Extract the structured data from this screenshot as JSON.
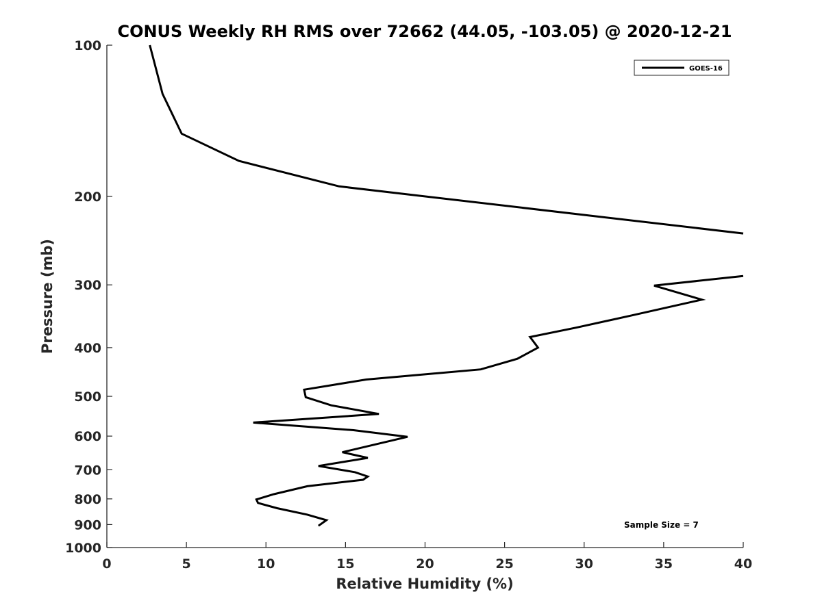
{
  "chart_data": {
    "type": "line",
    "title": "CONUS Weekly RH RMS over 72662 (44.05, -103.05) @ 2020-12-21",
    "xlabel": "Relative Humidity (%)",
    "ylabel": "Pressure (mb)",
    "xlim": [
      0,
      40
    ],
    "ylim": [
      100,
      1000
    ],
    "y_scale": "log",
    "y_reversed": true,
    "grid": false,
    "legend_position": "top-right",
    "x_ticks": [
      0,
      5,
      10,
      15,
      20,
      25,
      30,
      35,
      40
    ],
    "y_ticks": [
      100,
      200,
      300,
      400,
      500,
      600,
      700,
      800,
      900,
      1000
    ],
    "annotation": "Sample Size = 7",
    "series": [
      {
        "name": "GOES-16",
        "color": "#000000",
        "points": [
          [
            2.7,
            100
          ],
          [
            3.5,
            125
          ],
          [
            4.7,
            150
          ],
          [
            8.3,
            170
          ],
          [
            14.6,
            191
          ],
          [
            40.0,
            237
          ],
          [
            null,
            null
          ],
          [
            40.0,
            288
          ],
          [
            34.4,
            301
          ],
          [
            37.4,
            321
          ],
          [
            33.0,
            345
          ],
          [
            29.5,
            365
          ],
          [
            26.6,
            381
          ],
          [
            27.1,
            400
          ],
          [
            25.8,
            421
          ],
          [
            23.5,
            442
          ],
          [
            16.3,
            463
          ],
          [
            12.4,
            485
          ],
          [
            12.5,
            502
          ],
          [
            14.1,
            521
          ],
          [
            17.1,
            542
          ],
          [
            9.2,
            564
          ],
          [
            15.5,
            584
          ],
          [
            18.9,
            602
          ],
          [
            14.8,
            646
          ],
          [
            16.4,
            663
          ],
          [
            13.3,
            688
          ],
          [
            15.6,
            708
          ],
          [
            16.4,
            722
          ],
          [
            16.1,
            733
          ],
          [
            12.6,
            755
          ],
          [
            10.5,
            783
          ],
          [
            9.4,
            802
          ],
          [
            9.5,
            815
          ],
          [
            10.7,
            835
          ],
          [
            12.6,
            860
          ],
          [
            13.8,
            882
          ],
          [
            13.3,
            905
          ]
        ]
      }
    ]
  }
}
